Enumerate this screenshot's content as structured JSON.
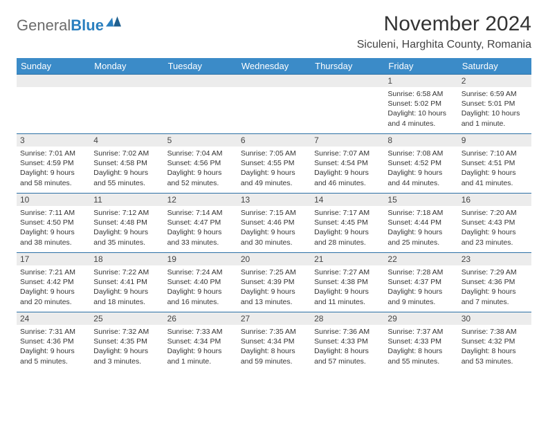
{
  "logo": {
    "part1": "General",
    "part2": "Blue"
  },
  "title": "November 2024",
  "location": "Siculeni, Harghita County, Romania",
  "colors": {
    "header_bg": "#3b8bc8",
    "header_text": "#ffffff",
    "daynum_bg": "#ececec",
    "row_border": "#2a6fa5",
    "logo_gray": "#6b6b6b",
    "logo_blue": "#2a7fbf",
    "text": "#333333",
    "background": "#ffffff"
  },
  "font": {
    "title_size_pt": 22,
    "location_size_pt": 12,
    "header_size_pt": 10,
    "body_size_pt": 8
  },
  "weekdays": [
    "Sunday",
    "Monday",
    "Tuesday",
    "Wednesday",
    "Thursday",
    "Friday",
    "Saturday"
  ],
  "weeks": [
    [
      null,
      null,
      null,
      null,
      null,
      {
        "n": "1",
        "sr": "6:58 AM",
        "ss": "5:02 PM",
        "dl": "10 hours and 4 minutes."
      },
      {
        "n": "2",
        "sr": "6:59 AM",
        "ss": "5:01 PM",
        "dl": "10 hours and 1 minute."
      }
    ],
    [
      {
        "n": "3",
        "sr": "7:01 AM",
        "ss": "4:59 PM",
        "dl": "9 hours and 58 minutes."
      },
      {
        "n": "4",
        "sr": "7:02 AM",
        "ss": "4:58 PM",
        "dl": "9 hours and 55 minutes."
      },
      {
        "n": "5",
        "sr": "7:04 AM",
        "ss": "4:56 PM",
        "dl": "9 hours and 52 minutes."
      },
      {
        "n": "6",
        "sr": "7:05 AM",
        "ss": "4:55 PM",
        "dl": "9 hours and 49 minutes."
      },
      {
        "n": "7",
        "sr": "7:07 AM",
        "ss": "4:54 PM",
        "dl": "9 hours and 46 minutes."
      },
      {
        "n": "8",
        "sr": "7:08 AM",
        "ss": "4:52 PM",
        "dl": "9 hours and 44 minutes."
      },
      {
        "n": "9",
        "sr": "7:10 AM",
        "ss": "4:51 PM",
        "dl": "9 hours and 41 minutes."
      }
    ],
    [
      {
        "n": "10",
        "sr": "7:11 AM",
        "ss": "4:50 PM",
        "dl": "9 hours and 38 minutes."
      },
      {
        "n": "11",
        "sr": "7:12 AM",
        "ss": "4:48 PM",
        "dl": "9 hours and 35 minutes."
      },
      {
        "n": "12",
        "sr": "7:14 AM",
        "ss": "4:47 PM",
        "dl": "9 hours and 33 minutes."
      },
      {
        "n": "13",
        "sr": "7:15 AM",
        "ss": "4:46 PM",
        "dl": "9 hours and 30 minutes."
      },
      {
        "n": "14",
        "sr": "7:17 AM",
        "ss": "4:45 PM",
        "dl": "9 hours and 28 minutes."
      },
      {
        "n": "15",
        "sr": "7:18 AM",
        "ss": "4:44 PM",
        "dl": "9 hours and 25 minutes."
      },
      {
        "n": "16",
        "sr": "7:20 AM",
        "ss": "4:43 PM",
        "dl": "9 hours and 23 minutes."
      }
    ],
    [
      {
        "n": "17",
        "sr": "7:21 AM",
        "ss": "4:42 PM",
        "dl": "9 hours and 20 minutes."
      },
      {
        "n": "18",
        "sr": "7:22 AM",
        "ss": "4:41 PM",
        "dl": "9 hours and 18 minutes."
      },
      {
        "n": "19",
        "sr": "7:24 AM",
        "ss": "4:40 PM",
        "dl": "9 hours and 16 minutes."
      },
      {
        "n": "20",
        "sr": "7:25 AM",
        "ss": "4:39 PM",
        "dl": "9 hours and 13 minutes."
      },
      {
        "n": "21",
        "sr": "7:27 AM",
        "ss": "4:38 PM",
        "dl": "9 hours and 11 minutes."
      },
      {
        "n": "22",
        "sr": "7:28 AM",
        "ss": "4:37 PM",
        "dl": "9 hours and 9 minutes."
      },
      {
        "n": "23",
        "sr": "7:29 AM",
        "ss": "4:36 PM",
        "dl": "9 hours and 7 minutes."
      }
    ],
    [
      {
        "n": "24",
        "sr": "7:31 AM",
        "ss": "4:36 PM",
        "dl": "9 hours and 5 minutes."
      },
      {
        "n": "25",
        "sr": "7:32 AM",
        "ss": "4:35 PM",
        "dl": "9 hours and 3 minutes."
      },
      {
        "n": "26",
        "sr": "7:33 AM",
        "ss": "4:34 PM",
        "dl": "9 hours and 1 minute."
      },
      {
        "n": "27",
        "sr": "7:35 AM",
        "ss": "4:34 PM",
        "dl": "8 hours and 59 minutes."
      },
      {
        "n": "28",
        "sr": "7:36 AM",
        "ss": "4:33 PM",
        "dl": "8 hours and 57 minutes."
      },
      {
        "n": "29",
        "sr": "7:37 AM",
        "ss": "4:33 PM",
        "dl": "8 hours and 55 minutes."
      },
      {
        "n": "30",
        "sr": "7:38 AM",
        "ss": "4:32 PM",
        "dl": "8 hours and 53 minutes."
      }
    ]
  ],
  "labels": {
    "sunrise": "Sunrise: ",
    "sunset": "Sunset: ",
    "daylight": "Daylight: "
  }
}
